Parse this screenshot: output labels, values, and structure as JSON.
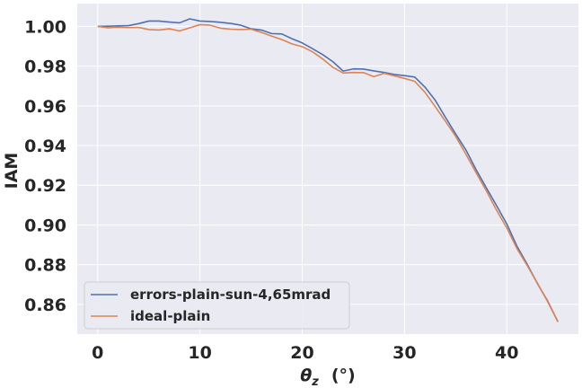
{
  "chart_data": {
    "type": "line",
    "xlabel_symbol": "θ",
    "xlabel_subscript": "z",
    "xlabel_unit": "(°)",
    "ylabel": "IAM",
    "xlim": [
      -2,
      47
    ],
    "ylim": [
      0.845,
      1.0115
    ],
    "xticks": [
      0,
      10,
      20,
      30,
      40
    ],
    "xtick_labels": [
      "0",
      "10",
      "20",
      "30",
      "40"
    ],
    "yticks": [
      0.86,
      0.88,
      0.9,
      0.92,
      0.94,
      0.96,
      0.98,
      1.0
    ],
    "ytick_labels": [
      "0.86",
      "0.88",
      "0.90",
      "0.92",
      "0.94",
      "0.96",
      "0.98",
      "1.00"
    ],
    "grid": true,
    "legend_position": "lower-left",
    "colors": {
      "background": "#eaeaf2",
      "grid": "#ffffff"
    },
    "series": [
      {
        "name": "errors-plain-sun-4,65mrad",
        "color": "#4c72b0",
        "x": [
          0,
          1,
          2,
          3,
          4,
          5,
          6,
          7,
          8,
          9,
          10,
          11,
          12,
          13,
          14,
          15,
          16,
          17,
          18,
          19,
          20,
          21,
          22,
          23,
          24,
          25,
          26,
          27,
          28,
          29,
          30,
          31,
          32,
          33,
          34,
          35,
          36,
          37,
          38,
          39,
          40,
          41,
          42,
          43,
          44,
          45
        ],
        "y": [
          1.0,
          1.0001,
          1.0003,
          1.0004,
          1.0014,
          1.0027,
          1.0027,
          1.0022,
          1.0018,
          1.0038,
          1.0027,
          1.0025,
          1.0021,
          1.0015,
          1.0006,
          0.9988,
          0.9982,
          0.9964,
          0.9962,
          0.9938,
          0.9917,
          0.9888,
          0.9858,
          0.9822,
          0.9775,
          0.9786,
          0.9785,
          0.9776,
          0.9768,
          0.9758,
          0.9752,
          0.9745,
          0.9694,
          0.9628,
          0.9542,
          0.9458,
          0.9378,
          0.9278,
          0.9187,
          0.9097,
          0.9005,
          0.8892,
          0.8801,
          0.8704,
          0.8616,
          0.8512
        ]
      },
      {
        "name": "ideal-plain",
        "color": "#dd8452",
        "x": [
          0,
          1,
          2,
          3,
          4,
          5,
          6,
          7,
          8,
          9,
          10,
          11,
          12,
          13,
          14,
          15,
          16,
          17,
          18,
          19,
          20,
          21,
          22,
          23,
          24,
          25,
          26,
          27,
          28,
          29,
          30,
          31,
          32,
          33,
          34,
          35,
          36,
          37,
          38,
          39,
          40,
          41,
          42,
          43,
          44,
          45
        ],
        "y": [
          1.0,
          0.9993,
          0.9996,
          0.9994,
          0.9995,
          0.9984,
          0.9982,
          0.9988,
          0.9977,
          0.9993,
          1.0009,
          1.0006,
          0.9991,
          0.9986,
          0.9984,
          0.9986,
          0.997,
          0.9951,
          0.9934,
          0.9912,
          0.9898,
          0.9872,
          0.9836,
          0.9794,
          0.9765,
          0.9768,
          0.9767,
          0.9747,
          0.9764,
          0.9751,
          0.9738,
          0.9723,
          0.9668,
          0.9596,
          0.9522,
          0.9446,
          0.9356,
          0.9263,
          0.9172,
          0.9074,
          0.8985,
          0.888,
          0.8795,
          0.8706,
          0.8613,
          0.8512
        ]
      }
    ]
  }
}
